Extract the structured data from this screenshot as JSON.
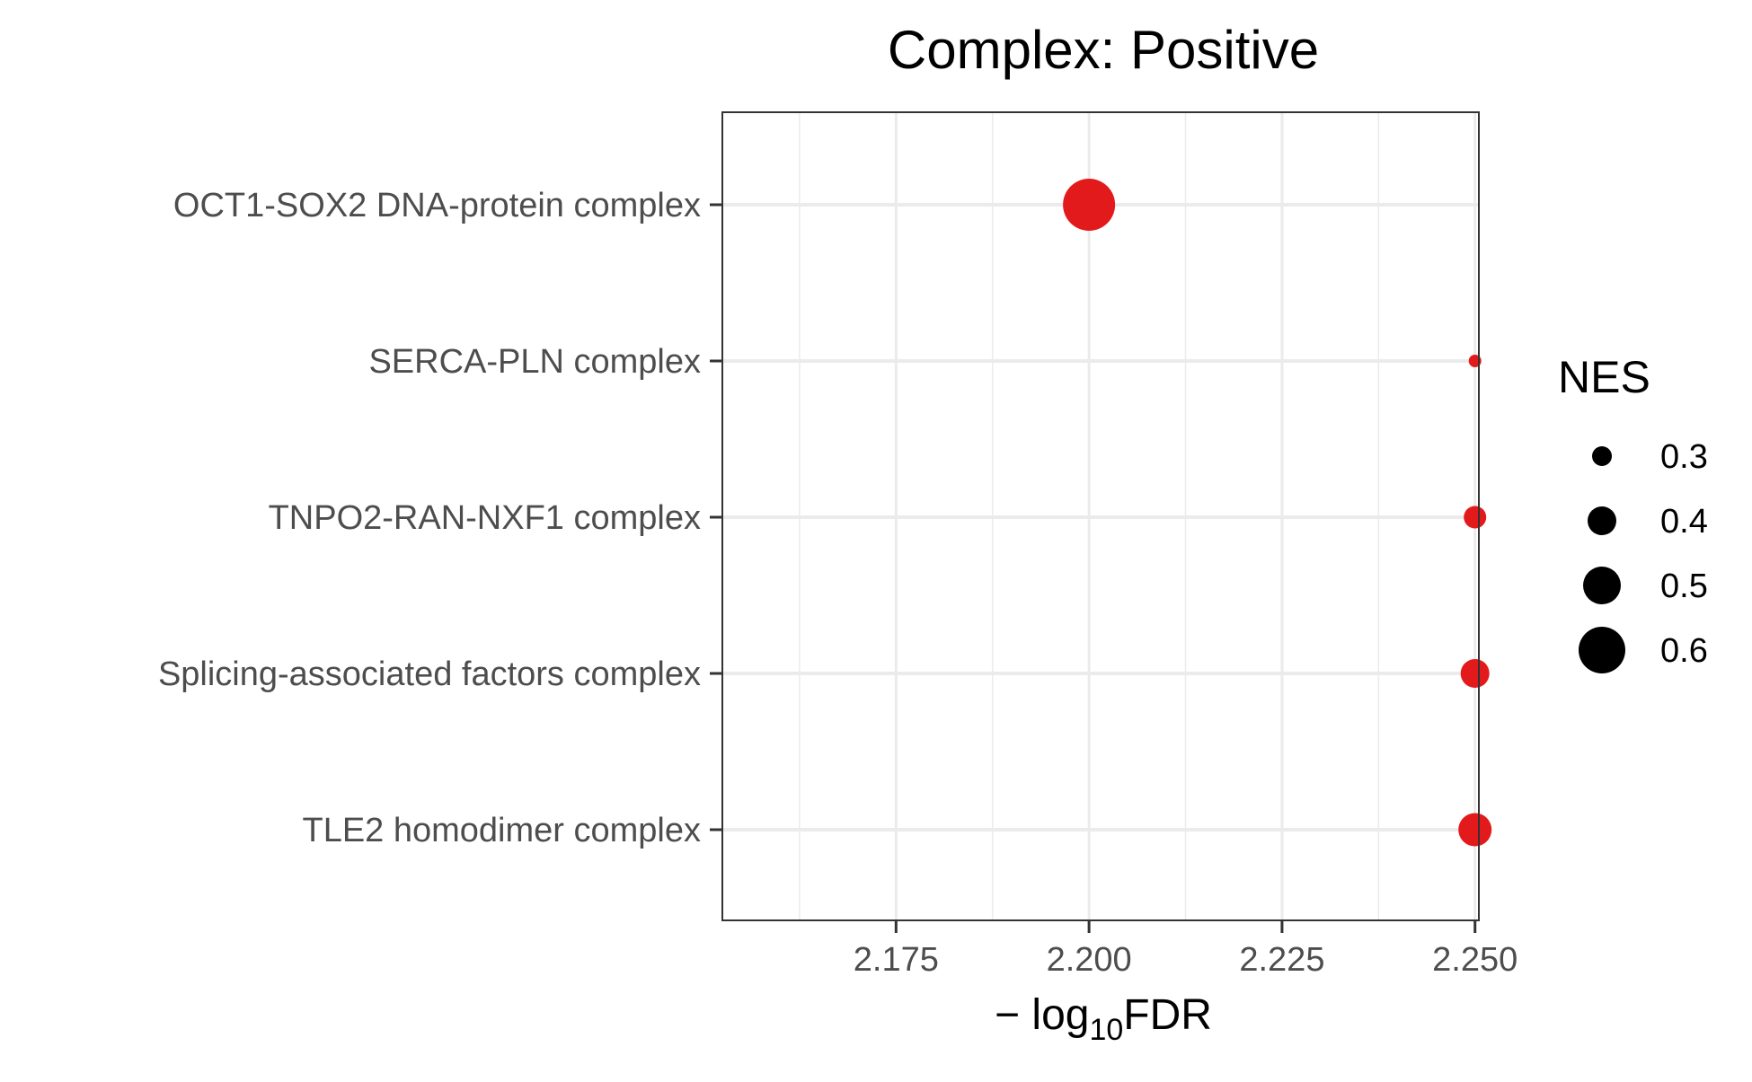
{
  "chart_data": {
    "type": "scatter",
    "title": "Complex: Positive",
    "xlabel": {
      "prefix": "− log",
      "subscript": "10",
      "suffix": "FDR"
    },
    "ylabel": "",
    "xlim": [
      2.1525,
      2.2505
    ],
    "x_ticks": [
      2.175,
      2.2,
      2.225,
      2.25
    ],
    "x_tick_labels": [
      "2.175",
      "2.200",
      "2.225",
      "2.250"
    ],
    "grid": true,
    "point_color": "#e31a1c",
    "categories": [
      "OCT1-SOX2 DNA-protein complex",
      "SERCA-PLN complex",
      "TNPO2-RAN-NXF1 complex",
      "Splicing-associated factors complex",
      "TLE2 homodimer complex"
    ],
    "points": [
      {
        "category": "OCT1-SOX2 DNA-protein complex",
        "x": 2.2,
        "nes": 0.66
      },
      {
        "category": "SERCA-PLN complex",
        "x": 2.25,
        "nes": 0.22
      },
      {
        "category": "TNPO2-RAN-NXF1 complex",
        "x": 2.25,
        "nes": 0.33
      },
      {
        "category": "Splicing-associated factors complex",
        "x": 2.25,
        "nes": 0.4
      },
      {
        "category": "TLE2 homodimer complex",
        "x": 2.25,
        "nes": 0.45
      }
    ],
    "legend": {
      "title": "NES",
      "position": "right",
      "color": "#000000",
      "values": [
        0.3,
        0.4,
        0.5,
        0.6
      ],
      "labels": [
        "0.3",
        "0.4",
        "0.5",
        "0.6"
      ]
    }
  }
}
